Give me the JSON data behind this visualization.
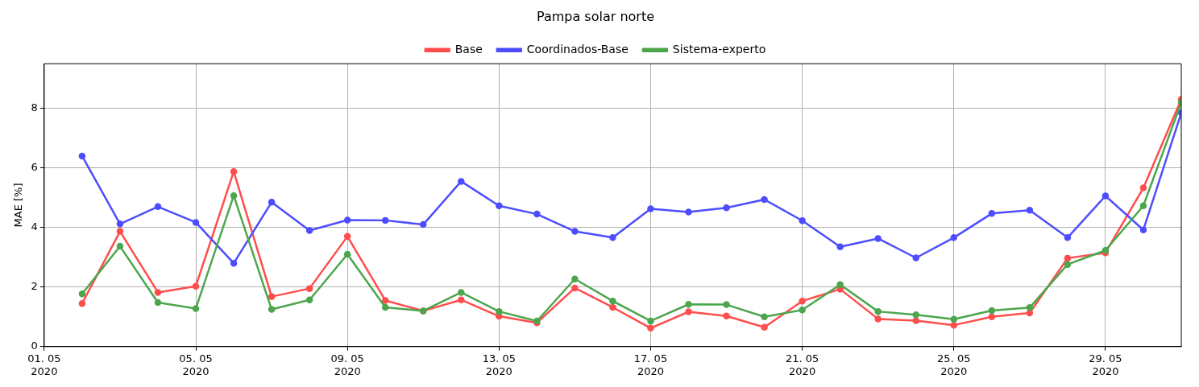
{
  "chart_data": {
    "type": "line",
    "title": "Pampa solar norte",
    "ylabel": "MAE [%]",
    "x": [
      "2020-05-02",
      "2020-05-03",
      "2020-05-04",
      "2020-05-05",
      "2020-05-06",
      "2020-05-07",
      "2020-05-08",
      "2020-05-09",
      "2020-05-10",
      "2020-05-11",
      "2020-05-12",
      "2020-05-13",
      "2020-05-14",
      "2020-05-15",
      "2020-05-16",
      "2020-05-17",
      "2020-05-18",
      "2020-05-19",
      "2020-05-20",
      "2020-05-21",
      "2020-05-22",
      "2020-05-23",
      "2020-05-24",
      "2020-05-25",
      "2020-05-26",
      "2020-05-27",
      "2020-05-28",
      "2020-05-29",
      "2020-05-30",
      "2020-05-31"
    ],
    "series": [
      {
        "name": "Base",
        "color": "#ff4d4d",
        "values": [
          1.45,
          3.87,
          1.82,
          2.03,
          5.88,
          1.68,
          1.95,
          3.7,
          1.55,
          1.2,
          1.57,
          1.02,
          0.8,
          1.97,
          1.32,
          0.62,
          1.17,
          1.03,
          0.65,
          1.53,
          1.93,
          0.93,
          0.87,
          0.72,
          1.0,
          1.13,
          2.97,
          3.15,
          5.33,
          8.3
        ]
      },
      {
        "name": "Coordinados-Base",
        "color": "#4d4dff",
        "values": [
          6.4,
          4.12,
          4.7,
          4.17,
          2.8,
          4.85,
          3.9,
          4.25,
          4.24,
          4.1,
          5.55,
          4.73,
          4.45,
          3.87,
          3.66,
          4.63,
          4.52,
          4.66,
          4.94,
          4.23,
          3.35,
          3.63,
          2.98,
          3.66,
          4.47,
          4.58,
          3.66,
          5.06,
          3.92,
          7.85
        ]
      },
      {
        "name": "Sistema-experto",
        "color": "#4da64d",
        "values": [
          1.77,
          3.37,
          1.48,
          1.28,
          5.07,
          1.25,
          1.57,
          3.1,
          1.32,
          1.2,
          1.82,
          1.18,
          0.86,
          2.27,
          1.53,
          0.86,
          1.42,
          1.41,
          1.0,
          1.23,
          2.08,
          1.18,
          1.07,
          0.92,
          1.21,
          1.31,
          2.76,
          3.23,
          4.73,
          8.2
        ]
      }
    ],
    "xlim": [
      "2020-05-01",
      "2020-05-31"
    ],
    "xticks": [
      {
        "value": "2020-05-01",
        "label": "01. 05\n2020"
      },
      {
        "value": "2020-05-05",
        "label": "05. 05\n2020"
      },
      {
        "value": "2020-05-09",
        "label": "09. 05\n2020"
      },
      {
        "value": "2020-05-13",
        "label": "13. 05\n2020"
      },
      {
        "value": "2020-05-17",
        "label": "17. 05\n2020"
      },
      {
        "value": "2020-05-21",
        "label": "21. 05\n2020"
      },
      {
        "value": "2020-05-25",
        "label": "25. 05\n2020"
      },
      {
        "value": "2020-05-29",
        "label": "29. 05\n2020"
      }
    ],
    "ylim": [
      0,
      9.5
    ],
    "yticks": [
      0,
      2,
      4,
      6,
      8
    ],
    "grid": true,
    "legend": "top",
    "marker": "circle",
    "line_style": "solid"
  }
}
